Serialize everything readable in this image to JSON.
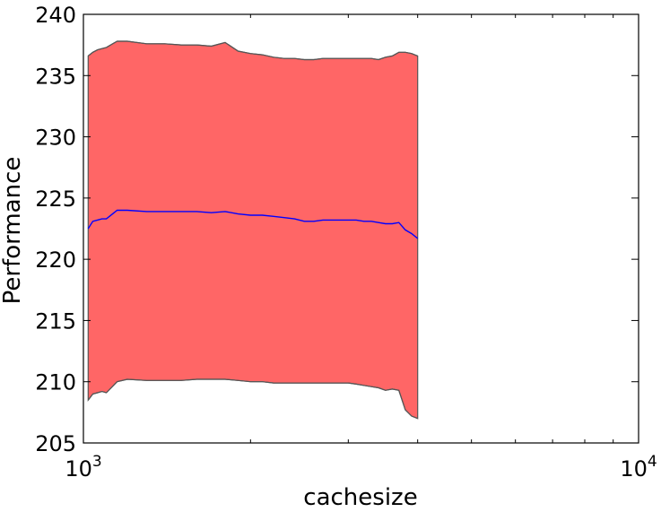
{
  "chart_data": {
    "type": "area",
    "title": "",
    "xlabel": "cachesize",
    "ylabel": "Performance",
    "x_scale": "log",
    "xlim": [
      1000,
      10000
    ],
    "ylim": [
      205,
      240
    ],
    "grid": false,
    "x_ticks": [
      {
        "value": 1000,
        "base": "10",
        "exponent": "3"
      },
      {
        "value": 10000,
        "base": "10",
        "exponent": "4"
      }
    ],
    "y_ticks": [
      205,
      210,
      215,
      220,
      225,
      230,
      235,
      240
    ],
    "colors": {
      "band_fill": "#ff6666",
      "band_edge": "#555555",
      "mean_line": "#0000ff"
    },
    "x": [
      1020,
      1040,
      1060,
      1080,
      1100,
      1150,
      1200,
      1300,
      1400,
      1500,
      1600,
      1700,
      1800,
      1900,
      2000,
      2100,
      2200,
      2300,
      2400,
      2500,
      2600,
      2700,
      2800,
      2900,
      3000,
      3100,
      3200,
      3300,
      3400,
      3500,
      3600,
      3700,
      3800,
      3900,
      4000
    ],
    "series": [
      {
        "role": "mean",
        "values": [
          222.5,
          223.1,
          223.2,
          223.3,
          223.3,
          224.0,
          224.0,
          223.9,
          223.9,
          223.9,
          223.9,
          223.8,
          223.9,
          223.7,
          223.6,
          223.6,
          223.5,
          223.4,
          223.3,
          223.1,
          223.1,
          223.2,
          223.2,
          223.2,
          223.2,
          223.2,
          223.1,
          223.1,
          223.0,
          222.9,
          222.9,
          223.0,
          222.4,
          222.1,
          221.7
        ]
      },
      {
        "role": "upper",
        "values": [
          236.6,
          236.9,
          237.1,
          237.2,
          237.3,
          237.8,
          237.8,
          237.6,
          237.6,
          237.5,
          237.5,
          237.4,
          237.7,
          237.0,
          236.8,
          236.7,
          236.5,
          236.4,
          236.4,
          236.3,
          236.3,
          236.4,
          236.4,
          236.4,
          236.4,
          236.4,
          236.4,
          236.4,
          236.3,
          236.5,
          236.6,
          236.9,
          236.9,
          236.8,
          236.6
        ]
      },
      {
        "role": "lower",
        "values": [
          208.5,
          209.0,
          209.1,
          209.2,
          209.1,
          210.0,
          210.2,
          210.1,
          210.1,
          210.1,
          210.2,
          210.2,
          210.2,
          210.1,
          210.0,
          210.0,
          209.9,
          209.9,
          209.9,
          209.9,
          209.9,
          209.9,
          209.9,
          209.9,
          209.9,
          209.8,
          209.7,
          209.6,
          209.5,
          209.3,
          209.4,
          209.3,
          207.7,
          207.2,
          207.0
        ]
      }
    ]
  }
}
